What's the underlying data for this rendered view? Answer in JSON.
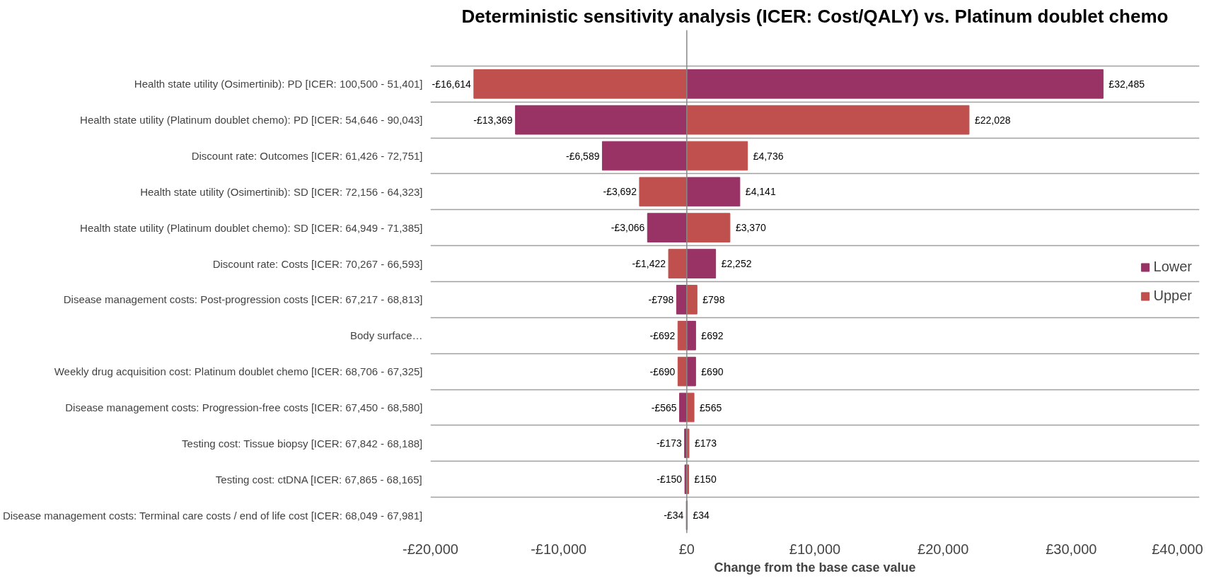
{
  "chart_data": {
    "type": "bar",
    "orientation": "horizontal",
    "title": "Deterministic sensitivity analysis (ICER: Cost/QALY) vs. Platinum doublet chemo",
    "xlabel": "Change from the base case value",
    "categories": [
      "Health state utility (Osimertinib): PD [ICER: 100,500 - 51,401]",
      "Health state utility (Platinum doublet chemo): PD [ICER: 54,646 - 90,043]",
      "Discount rate: Outcomes [ICER: 61,426 - 72,751]",
      "Health state utility (Osimertinib): SD [ICER: 72,156 - 64,323]",
      "Health state utility (Platinum doublet chemo): SD [ICER: 64,949 - 71,385]",
      "Discount rate: Costs [ICER: 70,267 - 66,593]",
      "Disease management costs: Post-progression costs [ICER: 67,217 - 68,813]",
      "Body surface…",
      "Weekly drug acquisition cost: Platinum doublet chemo [ICER: 68,706 - 67,325]",
      "Disease management costs: Progression-free costs [ICER: 67,450 - 68,580]",
      "Testing cost: Tissue biopsy [ICER: 67,842 - 68,188]",
      "Testing cost: ctDNA [ICER: 67,865 - 68,165]",
      "Disease management costs: Terminal care costs / end of life cost [ICER: 68,049 - 67,981]"
    ],
    "series": [
      {
        "name": "Lower",
        "color": "#993366",
        "values": [
          32485,
          -13369,
          -6589,
          4141,
          -3066,
          2252,
          -798,
          692,
          690,
          -565,
          -173,
          -150,
          -34
        ],
        "value_labels": [
          "£32,485",
          "-£13,369",
          "-£6,589",
          "£4,141",
          "-£3,066",
          "£2,252",
          "-£798",
          "£692",
          "£690",
          "-£565",
          "-£173",
          "-£150",
          "-£34"
        ]
      },
      {
        "name": "Upper",
        "color": "#c0504d",
        "values": [
          -16614,
          22028,
          4736,
          -3692,
          3370,
          -1422,
          798,
          -692,
          -690,
          565,
          173,
          150,
          34
        ],
        "value_labels": [
          "-£16,614",
          "£22,028",
          "£4,736",
          "-£3,692",
          "£3,370",
          "-£1,422",
          "£798",
          "-£692",
          "-£690",
          "£565",
          "£173",
          "£150",
          "£34"
        ]
      }
    ],
    "xlim": [
      -20000,
      40000
    ],
    "xticks": [
      {
        "value": -20000,
        "label": "-£20,000"
      },
      {
        "value": -10000,
        "label": "-£10,000"
      },
      {
        "value": 0,
        "label": "£0"
      },
      {
        "value": 10000,
        "label": "£10,000"
      },
      {
        "value": 20000,
        "label": "£20,000"
      },
      {
        "value": 30000,
        "label": "£30,000"
      },
      {
        "value": 40000,
        "label": "£40,000"
      }
    ],
    "stacked": true,
    "grid": "y",
    "legend": "right"
  }
}
